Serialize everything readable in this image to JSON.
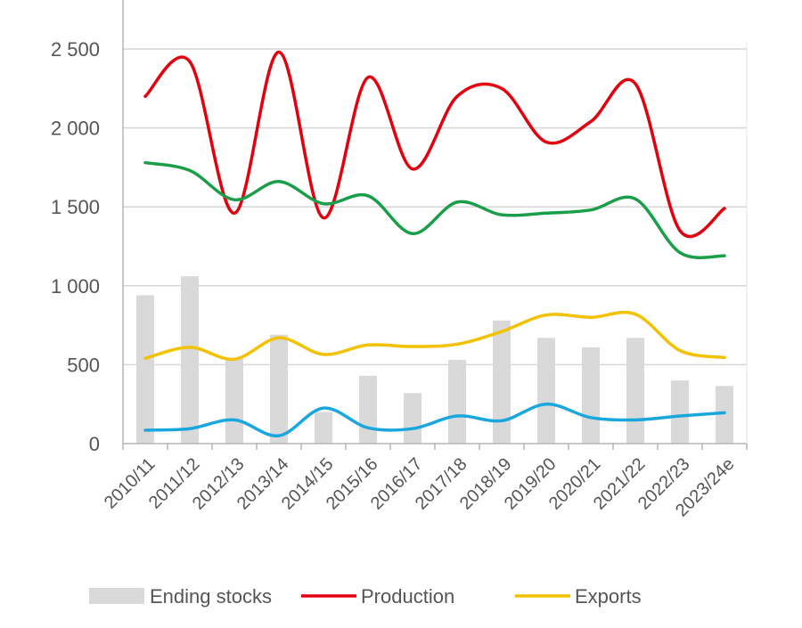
{
  "chart_data": {
    "type": "line",
    "categories": [
      "2010/11",
      "2011/12",
      "2012/13",
      "2013/14",
      "2014/15",
      "2015/16",
      "2016/17",
      "2017/18",
      "2018/19",
      "2019/20",
      "2020/21",
      "2021/22",
      "2022/23",
      "2023/24e"
    ],
    "ylim": [
      0,
      2500
    ],
    "yticks": [
      0,
      500,
      1000,
      1500,
      2000,
      2500
    ],
    "ytick_labels": [
      "0",
      "500",
      "1 000",
      "1 500",
      "2 000",
      "2 500"
    ],
    "grid": true,
    "legend_position": "bottom",
    "series": [
      {
        "name": "Ending stocks",
        "kind": "bar",
        "color": "#d9d9d9",
        "values": [
          940,
          1060,
          540,
          690,
          200,
          430,
          320,
          530,
          780,
          670,
          610,
          670,
          400,
          365
        ]
      },
      {
        "name": "Production",
        "kind": "line",
        "color": "#e3000f",
        "values": [
          2200,
          2420,
          1460,
          2480,
          1430,
          2320,
          1740,
          2200,
          2250,
          1910,
          2040,
          2280,
          1350,
          1490
        ]
      },
      {
        "name": "",
        "kind": "line",
        "color": "#1a9e4a",
        "show_in_legend": false,
        "values": [
          1780,
          1730,
          1545,
          1660,
          1520,
          1570,
          1330,
          1530,
          1450,
          1460,
          1480,
          1550,
          1210,
          1190
        ]
      },
      {
        "name": "Exports",
        "kind": "line",
        "color": "#f2c200",
        "values": [
          540,
          610,
          535,
          670,
          565,
          625,
          615,
          630,
          710,
          815,
          800,
          820,
          590,
          545
        ]
      },
      {
        "name": "",
        "kind": "line",
        "color": "#1aa7de",
        "show_in_legend": false,
        "values": [
          85,
          95,
          150,
          50,
          225,
          100,
          95,
          175,
          145,
          250,
          165,
          150,
          175,
          195
        ]
      }
    ]
  }
}
